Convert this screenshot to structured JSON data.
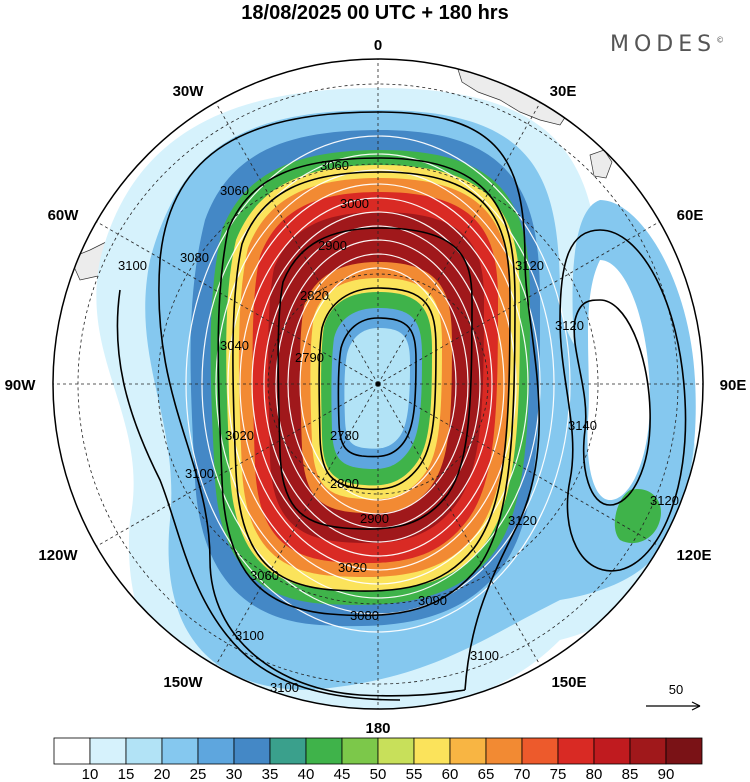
{
  "header": {
    "title": "18/08/2025  00 UTC  + 180 hrs",
    "brand": "MODES",
    "brand_mark": "©"
  },
  "map": {
    "projection": "south-polar-stereographic",
    "meridian_labels": [
      "0",
      "30E",
      "60E",
      "90E",
      "120E",
      "150E",
      "180",
      "150W",
      "120W",
      "90W",
      "60W",
      "30W"
    ],
    "contour_labels": [
      "3060",
      "3060",
      "3000",
      "2900",
      "2820",
      "2790",
      "2780",
      "2800",
      "2900",
      "3020",
      "3060",
      "3080",
      "3090",
      "3100",
      "3100",
      "3100",
      "3100",
      "3080",
      "3120",
      "3120",
      "3140",
      "3120",
      "3100",
      "3040",
      "3020",
      "3120"
    ],
    "reference_vector": "50"
  },
  "colorbar": {
    "levels": [
      "10",
      "15",
      "20",
      "25",
      "30",
      "35",
      "40",
      "45",
      "50",
      "55",
      "60",
      "65",
      "70",
      "75",
      "80",
      "85",
      "90"
    ],
    "colors": [
      "#ffffff",
      "#d6f2fc",
      "#b2e3f6",
      "#85c8ef",
      "#5ea6de",
      "#4488c6",
      "#3aa08c",
      "#3fb34a",
      "#7cc84a",
      "#c8e05a",
      "#fbe35b",
      "#f8b543",
      "#f28a33",
      "#ed5a2c",
      "#d92a24",
      "#c01b1f",
      "#a0181b",
      "#7a1216"
    ]
  }
}
